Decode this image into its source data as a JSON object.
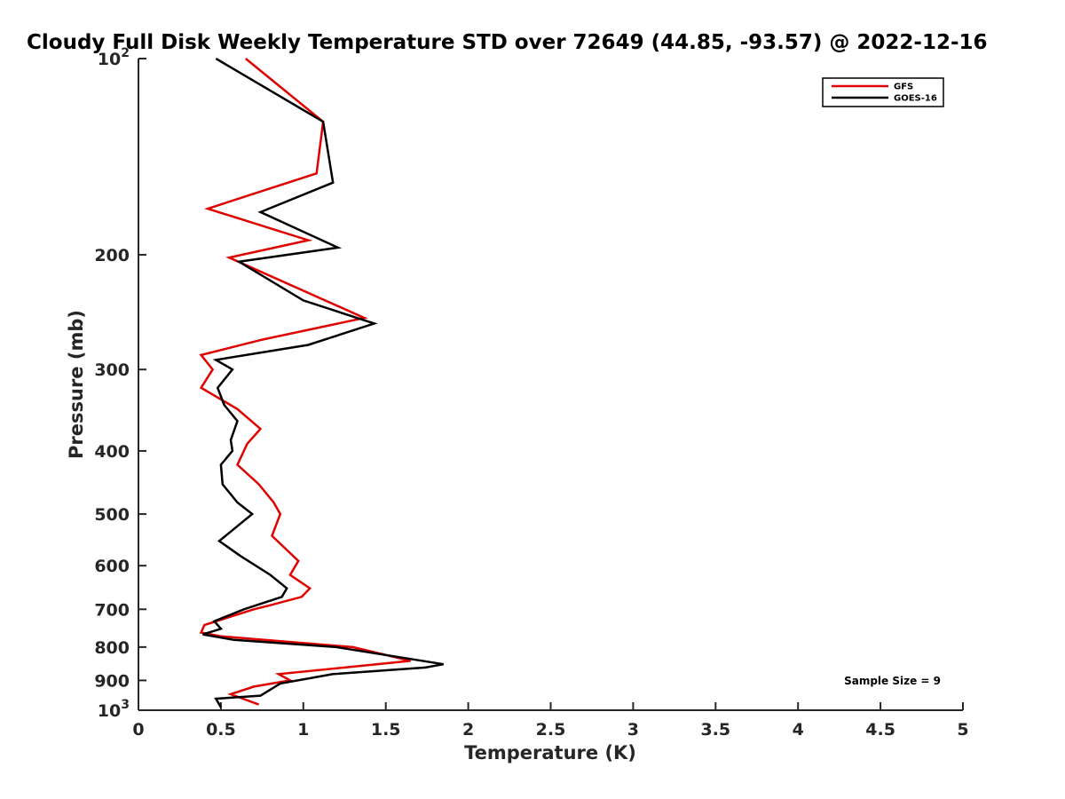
{
  "chart_data": {
    "type": "line",
    "title": "Cloudy Full Disk Weekly Temperature STD over 72649 (44.85, -93.57) @ 2022-12-16",
    "xlabel": "Temperature (K)",
    "ylabel": "Pressure (mb)",
    "xlim": [
      0,
      5
    ],
    "ylim": [
      100,
      1000
    ],
    "y_scale": "log",
    "y_reversed": true,
    "x_ticks": [
      "0",
      "0.5",
      "1",
      "1.5",
      "2",
      "2.5",
      "3",
      "3.5",
      "4",
      "4.5",
      "5"
    ],
    "y_ticks": [
      {
        "value": 100,
        "base": "10",
        "exp": "2"
      },
      {
        "value": 200,
        "label": "200"
      },
      {
        "value": 300,
        "label": "300"
      },
      {
        "value": 400,
        "label": "400"
      },
      {
        "value": 500,
        "label": "500"
      },
      {
        "value": 600,
        "label": "600"
      },
      {
        "value": 700,
        "label": "700"
      },
      {
        "value": 800,
        "label": "800"
      },
      {
        "value": 900,
        "label": "900"
      },
      {
        "value": 1000,
        "base": "10",
        "exp": "3"
      }
    ],
    "grid": false,
    "legend_position": "top-right",
    "annotation": "Sample Size = 9",
    "series": [
      {
        "name": "GFS",
        "color": "#e00000",
        "points": [
          [
            0.65,
            100
          ],
          [
            1.12,
            125
          ],
          [
            1.08,
            150
          ],
          [
            0.42,
            170
          ],
          [
            1.03,
            190
          ],
          [
            0.55,
            202
          ],
          [
            1.37,
            250
          ],
          [
            0.75,
            270
          ],
          [
            0.38,
            285
          ],
          [
            0.45,
            300
          ],
          [
            0.38,
            320
          ],
          [
            0.6,
            345
          ],
          [
            0.74,
            370
          ],
          [
            0.66,
            390
          ],
          [
            0.6,
            420
          ],
          [
            0.73,
            450
          ],
          [
            0.82,
            480
          ],
          [
            0.86,
            500
          ],
          [
            0.81,
            540
          ],
          [
            0.97,
            590
          ],
          [
            0.92,
            620
          ],
          [
            1.04,
            650
          ],
          [
            0.99,
            670
          ],
          [
            0.8,
            690
          ],
          [
            0.7,
            700
          ],
          [
            0.4,
            740
          ],
          [
            0.38,
            760
          ],
          [
            0.5,
            770
          ],
          [
            1.3,
            800
          ],
          [
            1.65,
            840
          ],
          [
            0.85,
            880
          ],
          [
            0.92,
            900
          ],
          [
            0.7,
            920
          ],
          [
            0.56,
            945
          ],
          [
            0.73,
            980
          ]
        ]
      },
      {
        "name": "GOES-16",
        "color": "#000000",
        "points": [
          [
            0.47,
            100
          ],
          [
            1.12,
            125
          ],
          [
            1.18,
            155
          ],
          [
            0.74,
            172
          ],
          [
            1.21,
            195
          ],
          [
            0.61,
            205
          ],
          [
            1.0,
            235
          ],
          [
            1.43,
            255
          ],
          [
            1.03,
            275
          ],
          [
            0.47,
            290
          ],
          [
            0.57,
            300
          ],
          [
            0.48,
            320
          ],
          [
            0.52,
            340
          ],
          [
            0.6,
            360
          ],
          [
            0.56,
            385
          ],
          [
            0.57,
            400
          ],
          [
            0.5,
            420
          ],
          [
            0.51,
            450
          ],
          [
            0.6,
            480
          ],
          [
            0.69,
            500
          ],
          [
            0.49,
            550
          ],
          [
            0.62,
            580
          ],
          [
            0.8,
            620
          ],
          [
            0.9,
            650
          ],
          [
            0.87,
            670
          ],
          [
            0.64,
            700
          ],
          [
            0.46,
            730
          ],
          [
            0.5,
            750
          ],
          [
            0.39,
            765
          ],
          [
            0.58,
            780
          ],
          [
            1.2,
            800
          ],
          [
            1.85,
            850
          ],
          [
            1.74,
            860
          ],
          [
            1.18,
            880
          ],
          [
            0.86,
            910
          ],
          [
            0.74,
            950
          ],
          [
            0.47,
            960
          ],
          [
            0.5,
            990
          ]
        ]
      }
    ]
  }
}
